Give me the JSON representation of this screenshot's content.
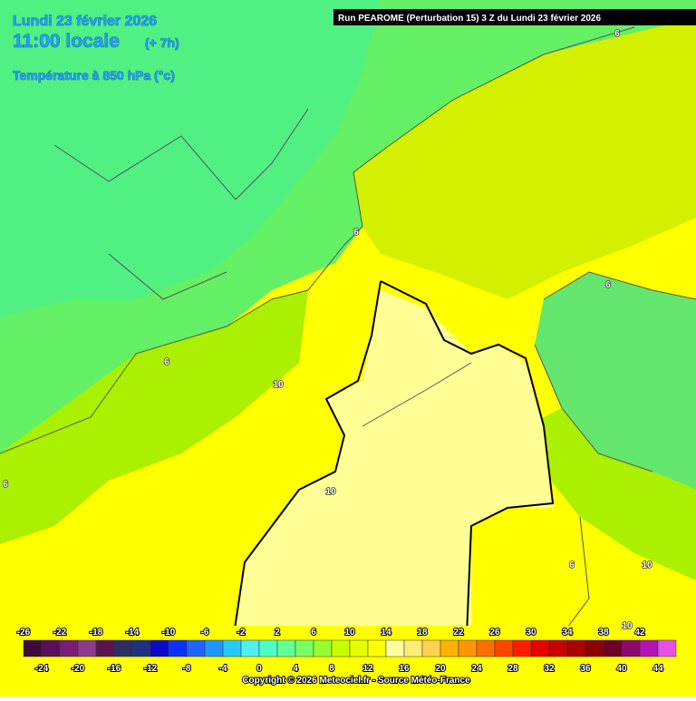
{
  "header": {
    "date": "Lundi 23 février 2026",
    "time": "11:00 locale",
    "offset": "(+ 7h)",
    "field": "Température à 850 hPa (°c)",
    "run": "Run PEAROME (Perturbation 15) 3 Z du Lundi 23 février 2026"
  },
  "contour_labels": [
    6,
    6,
    6,
    6,
    10,
    6,
    10,
    6,
    10,
    10
  ],
  "legend": {
    "top_labels": [
      -26,
      -22,
      -18,
      -14,
      -10,
      -6,
      -2,
      2,
      6,
      10,
      14,
      18,
      22,
      26,
      30,
      34,
      38,
      42
    ],
    "bottom_labels": [
      -24,
      -20,
      -16,
      -12,
      -8,
      -4,
      0,
      4,
      8,
      12,
      16,
      20,
      24,
      28,
      32,
      36,
      40,
      44
    ],
    "colors": [
      "#3c0a3c",
      "#5a0f5a",
      "#781e78",
      "#8c3c8c",
      "#5a1450",
      "#2d2d64",
      "#1e3282",
      "#0a0ac8",
      "#0a32ff",
      "#1e64ff",
      "#1e96ff",
      "#28c8ff",
      "#50f0f0",
      "#50ffc8",
      "#64ff96",
      "#78ff64",
      "#96ff32",
      "#c8ff00",
      "#e6ff00",
      "#ffff00",
      "#ffffa0",
      "#ffeb78",
      "#ffd250",
      "#ffb400",
      "#ff9600",
      "#ff6e00",
      "#ff4600",
      "#ff1e00",
      "#e60000",
      "#c80000",
      "#aa0000",
      "#8c0000",
      "#6e0028",
      "#8c0a6e",
      "#b414b4",
      "#e650e6"
    ]
  },
  "footer": {
    "copyright": "Copyright © 2026 Meteociel.fr - Source Météo-France"
  }
}
